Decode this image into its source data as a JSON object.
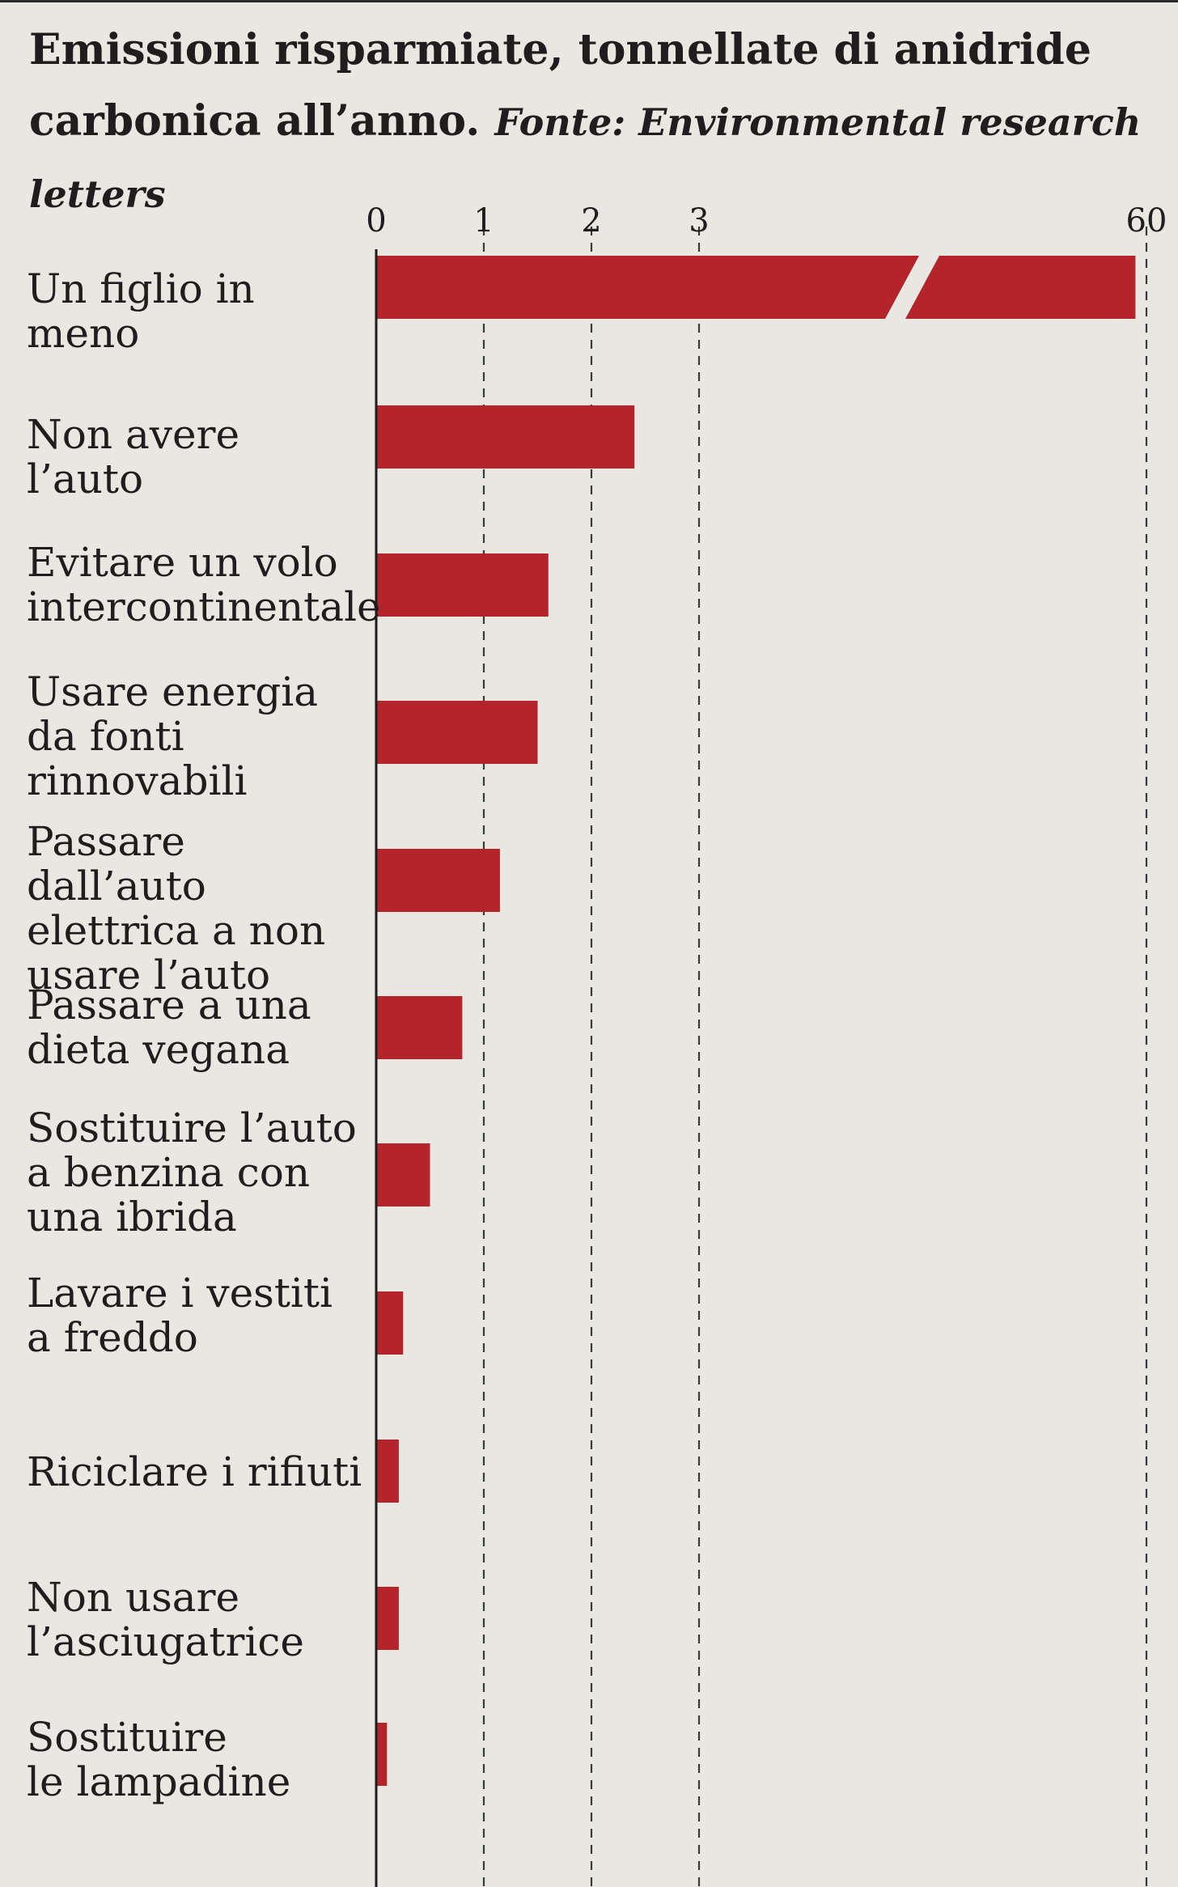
{
  "title": {
    "main": "Emissioni risparmiate, tonnellate di anidride carbonica all’anno.",
    "source": "Fonte: Environmental research letters"
  },
  "chart_data": {
    "type": "bar",
    "orientation": "horizontal",
    "title": "Emissioni risparmiate, tonnellate di anidride carbonica all’anno.",
    "source": "Fonte: Environmental research letters",
    "xlabel": "",
    "ylabel": "",
    "x_ticks": [
      "0",
      "1",
      "2",
      "3",
      "60"
    ],
    "xlim": [
      0,
      60
    ],
    "axis_break": true,
    "grid": "vertical dashed",
    "categories": [
      "Un figlio in meno",
      "Non avere l’auto",
      "Evitare un volo\nintercontinentale",
      "Usare energia\nda fonti\nrinnovabili",
      "Passare dall’auto\nelettrica a non\nusare l’auto",
      "Passare a una\ndieta vegana",
      "Sostituire l’auto\na benzina con\nuna ibrida",
      "Lavare i vestiti\na freddo",
      "Riciclare i rifiuti",
      "Non usare\nl’asciugatrice",
      "Sostituire\nle lampadine"
    ],
    "values": [
      58.6,
      2.4,
      1.6,
      1.5,
      1.15,
      0.8,
      0.5,
      0.25,
      0.21,
      0.21,
      0.1
    ],
    "bar_color": "#b3242b"
  }
}
